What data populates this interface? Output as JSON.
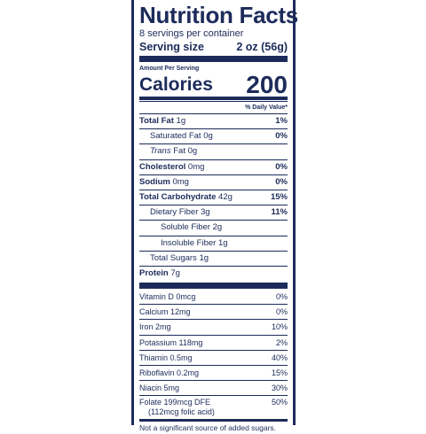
{
  "label": {
    "title": "Nutrition Facts",
    "servings_per_container": "8 servings per container",
    "serving_size_label": "Serving size",
    "serving_size_value": "2 oz (56g)",
    "amount_per_serving": "Amount Per Serving",
    "calories_label": "Calories",
    "calories_value": "200",
    "daily_value_header": "% Daily Value*",
    "nutrients": [
      {
        "label": "Total Fat",
        "amount": "1g",
        "dv": "1%"
      },
      {
        "label": "Saturated Fat",
        "amount": "0g",
        "dv": "0%"
      },
      {
        "label": "Trans",
        "label_rest": " Fat 0g",
        "dv": ""
      },
      {
        "label": "Cholesterol",
        "amount": "0mg",
        "dv": "0%"
      },
      {
        "label": "Sodium",
        "amount": "0mg",
        "dv": "0%"
      },
      {
        "label": "Total Carbohydrate",
        "amount": "42g",
        "dv": "15%"
      },
      {
        "label": "Dietary Fiber",
        "amount": "3g",
        "dv": "11%"
      },
      {
        "label": "Soluble Fiber",
        "amount": "2g",
        "dv": ""
      },
      {
        "label": "Insoluble Fiber",
        "amount": "1g",
        "dv": ""
      },
      {
        "label": "Total Sugars",
        "amount": "1g",
        "dv": ""
      },
      {
        "label": "Protein",
        "amount": "7g",
        "dv": ""
      }
    ],
    "vitamins": [
      {
        "label": "Vitamin D 0mcg",
        "dv": "0%"
      },
      {
        "label": "Calcium 12mg",
        "dv": "0%"
      },
      {
        "label": "Iron 2mg",
        "dv": "10%"
      },
      {
        "label": "Potassium 118mg",
        "dv": "2%"
      },
      {
        "label": "Thiamin 0.5mg",
        "dv": "40%"
      },
      {
        "label": "Riboflavin 0.2mg",
        "dv": "15%"
      },
      {
        "label": "Niacin 5mg",
        "dv": "30%"
      }
    ],
    "folate": {
      "label": "Folate 199mcg DFE",
      "sub": "(112mcg folic acid)",
      "dv": "50%"
    },
    "footnote": "Not a significant source of added sugars.",
    "colors": {
      "ink": "#1c2b5a",
      "background": "#ffffff"
    }
  }
}
